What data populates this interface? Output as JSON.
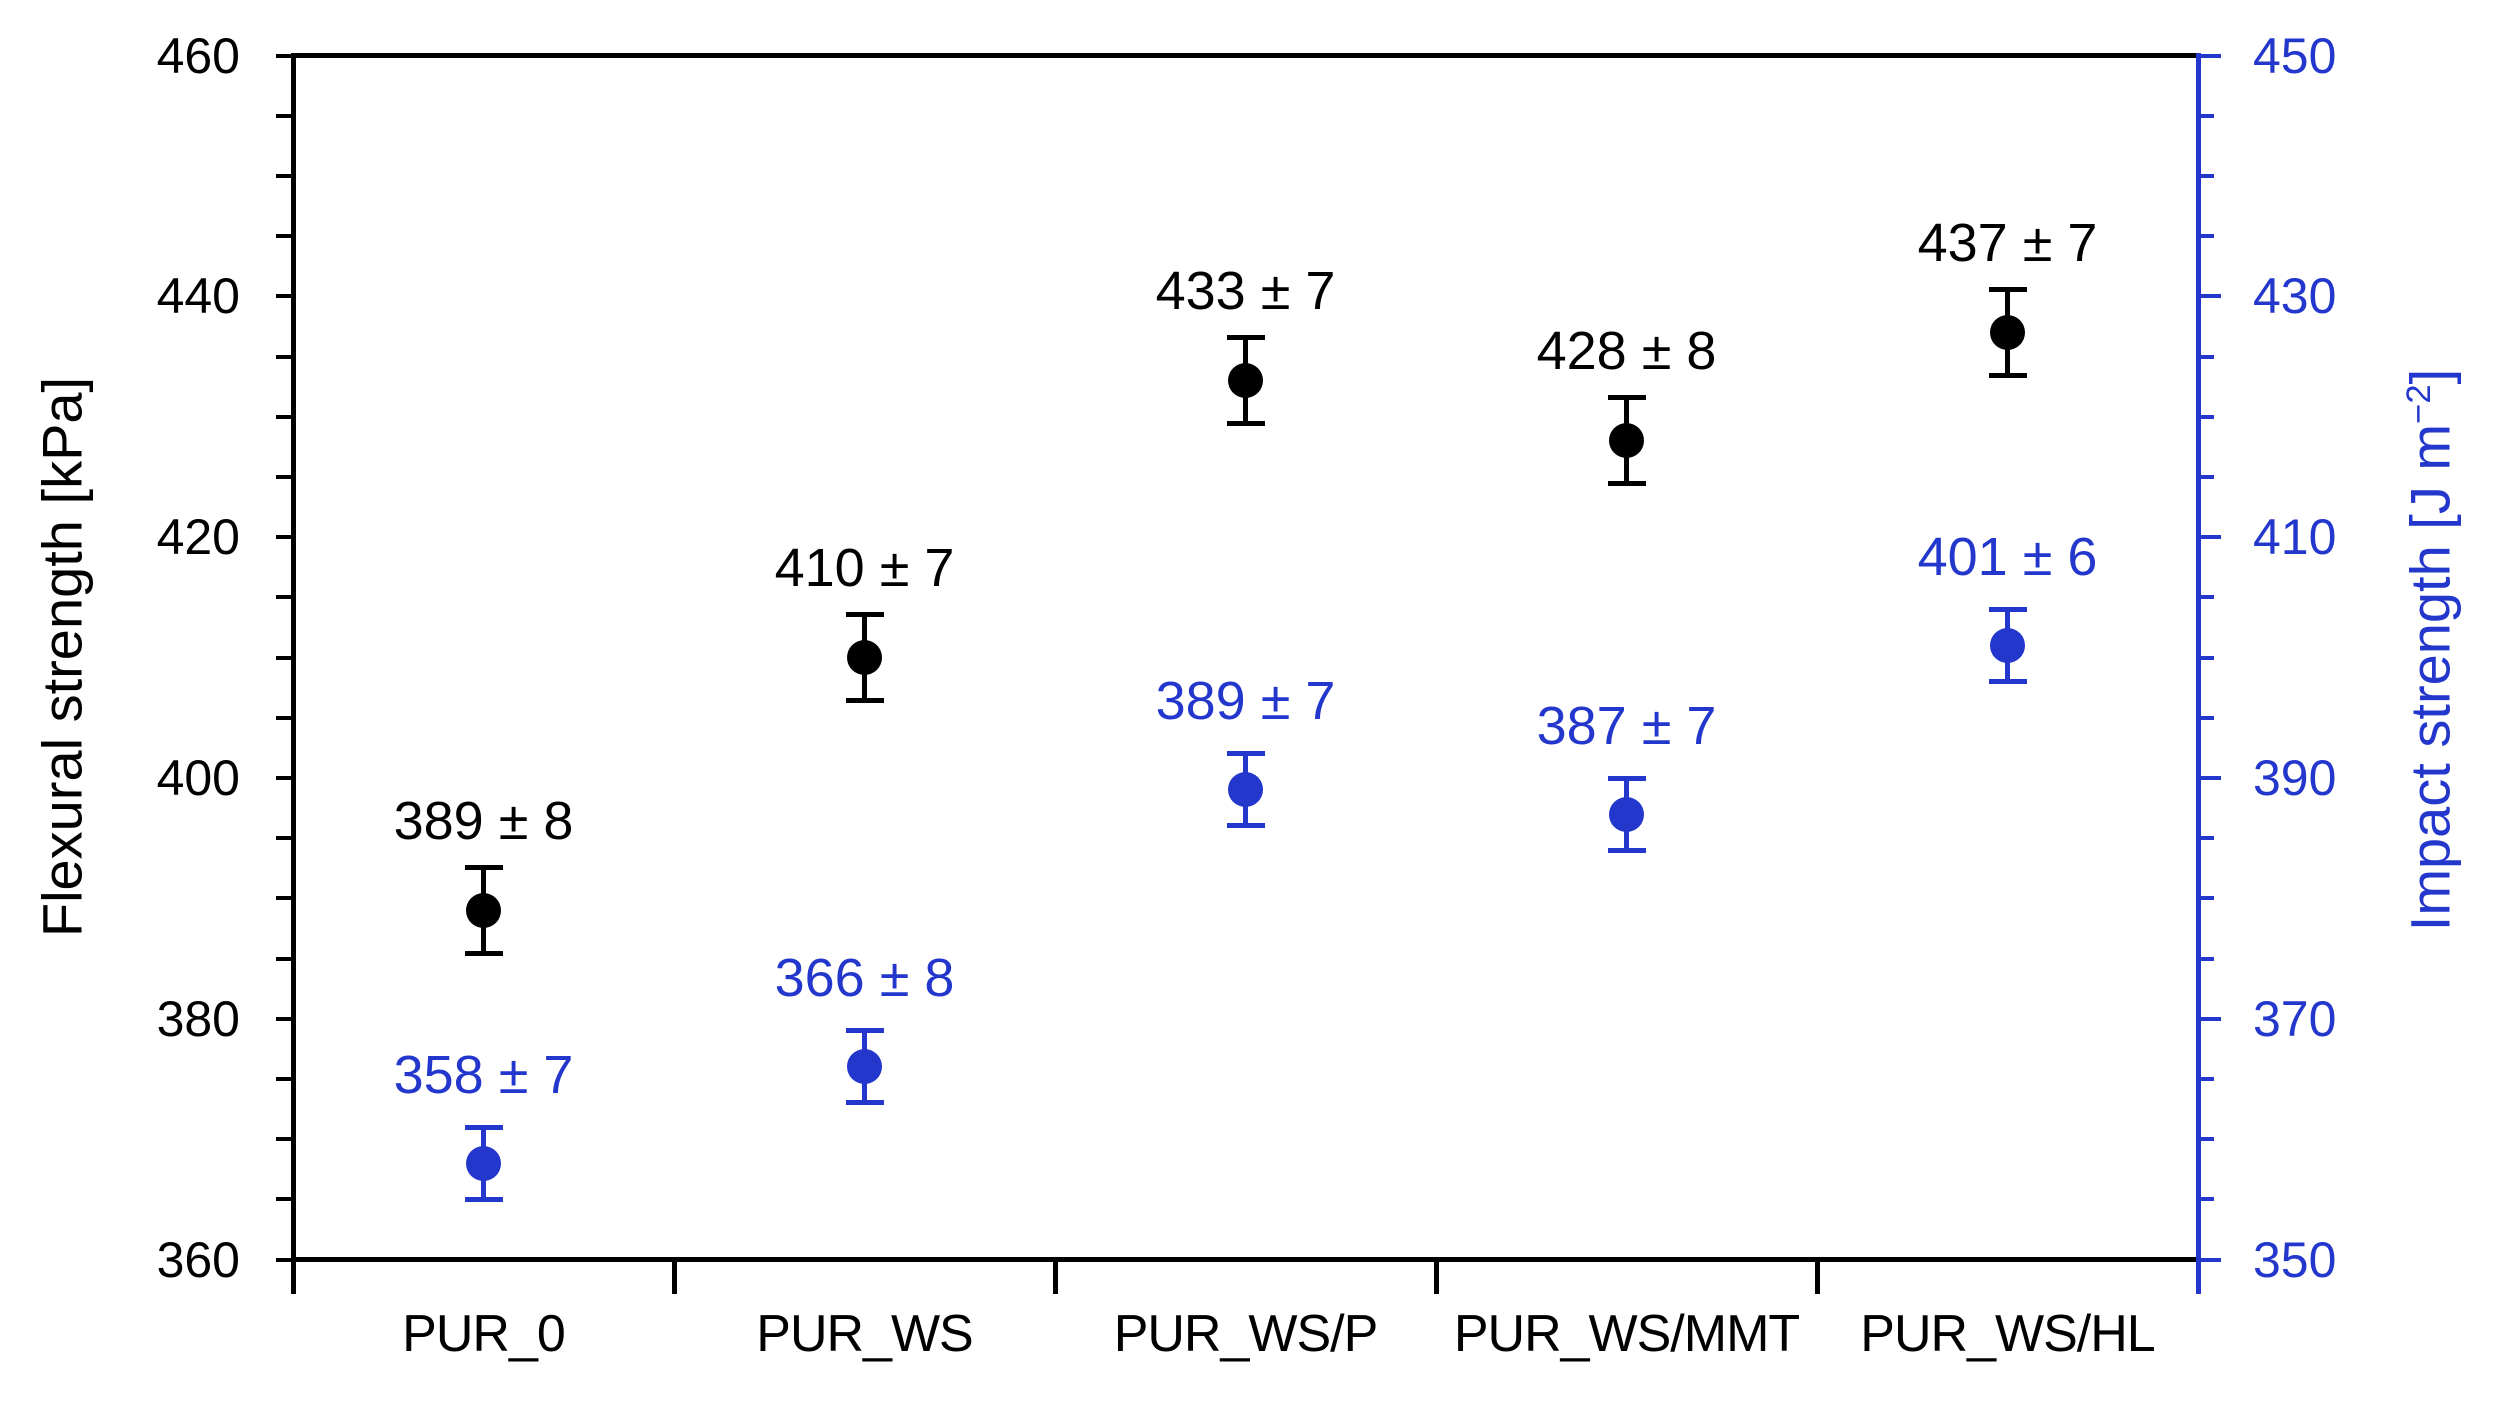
{
  "chart_data": {
    "type": "scatter",
    "title": "",
    "categories": [
      "PUR_0",
      "PUR_WS",
      "PUR_WS/P",
      "PUR_WS/MMT",
      "PUR_WS/HL"
    ],
    "series": [
      {
        "name": "Flexural strength",
        "axis": "left",
        "color": "#000000",
        "marker": "circle",
        "values": [
          389,
          410,
          433,
          428,
          437
        ],
        "errors": [
          8,
          7,
          7,
          8,
          7
        ],
        "point_labels": [
          "389 ± 8",
          "410 ± 7",
          "433 ± 7",
          "428 ± 8",
          "437 ± 7"
        ]
      },
      {
        "name": "Impact strength",
        "axis": "right",
        "color": "#2337cc",
        "marker": "circle",
        "values": [
          358,
          366,
          389,
          387,
          401
        ],
        "errors": [
          7,
          8,
          7,
          7,
          6
        ],
        "point_labels": [
          "358 ± 7",
          "366 ± 8",
          "389 ± 7",
          "387 ± 7",
          "401 ± 6"
        ]
      }
    ],
    "left_axis": {
      "title": "Flexural strength [kPa]",
      "min": 360,
      "max": 460,
      "major_step": 20,
      "minor_step": 5,
      "tick_labels": [
        "360",
        "380",
        "400",
        "420",
        "440",
        "460"
      ],
      "color": "#000000"
    },
    "right_axis": {
      "title_prefix": "Impact strength [J m",
      "title_sup": "−2",
      "title_suffix": "]",
      "min": 350,
      "max": 450,
      "major_step": 20,
      "minor_step": 5,
      "tick_labels": [
        "350",
        "370",
        "390",
        "410",
        "430",
        "450"
      ],
      "color": "#2337cc"
    },
    "x_axis": {
      "grid": false,
      "boundary_ticks": true
    },
    "legend": "none",
    "background": "#ffffff"
  }
}
